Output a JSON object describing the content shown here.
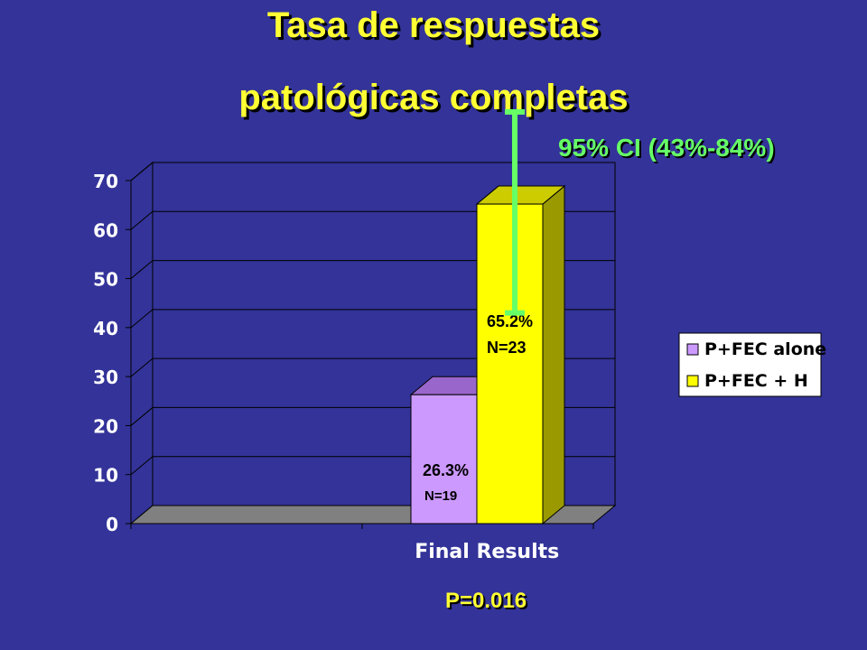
{
  "slide": {
    "title_line1": "Tasa de respuestas",
    "title_line2": "patológicas completas",
    "ci_text": "95% CI (43%-84%)",
    "p_value": "P=0.016"
  },
  "chart_data": {
    "type": "bar",
    "categories": [
      "Final Results"
    ],
    "series": [
      {
        "name": "P+FEC alone",
        "values": [
          26.3
        ],
        "label": "26.3%",
        "n_label": "N=19",
        "color": "#cc99ff",
        "top_color": "#9966cc",
        "side_color": "#7a4fb0"
      },
      {
        "name": "P+FEC + H",
        "values": [
          65.2
        ],
        "label": "65.2%",
        "n_label": "N=23",
        "color": "#ffff00",
        "top_color": "#cccc00",
        "side_color": "#9a9a00"
      }
    ],
    "error_bar": {
      "series": "P+FEC + H",
      "low": 43,
      "high": 84,
      "color": "#66ff66"
    },
    "ylim": [
      0,
      70
    ],
    "yticks": [
      0,
      10,
      20,
      30,
      40,
      50,
      60,
      70
    ],
    "grid": true,
    "legend_position": "right",
    "three_d": true,
    "colors": {
      "background": "#333399",
      "wall": "#333399",
      "floor": "#808080",
      "title": "#ffff33",
      "ci_text": "#66ff66"
    }
  }
}
